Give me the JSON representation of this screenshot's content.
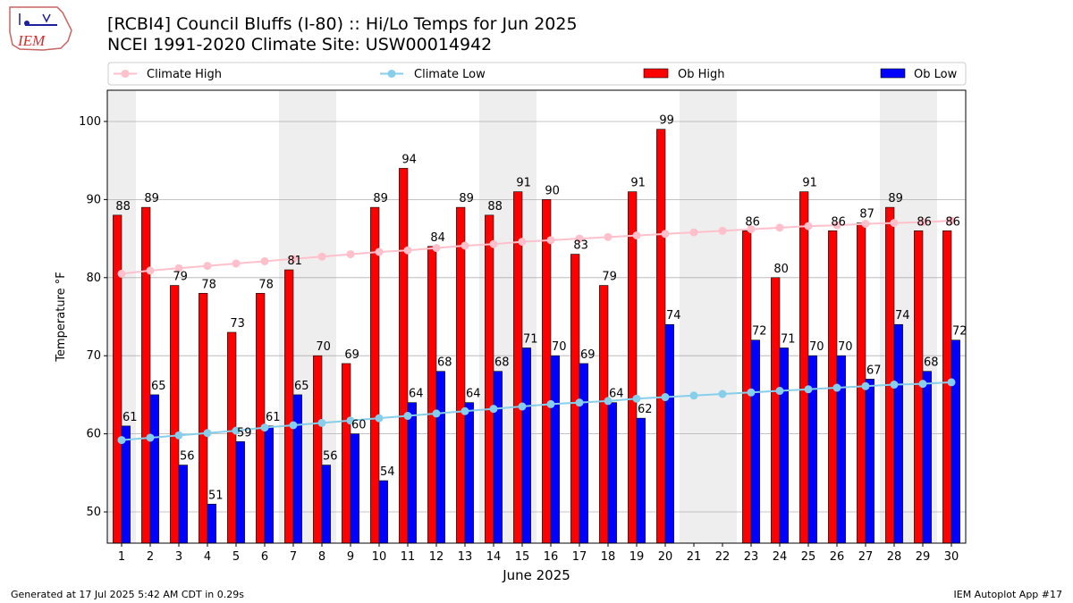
{
  "header": {
    "title_line1": "[RCBI4] Council Bluffs (I-80) :: Hi/Lo Temps for Jun 2025",
    "title_line2": "NCEI 1991-2020 Climate Site: USW00014942",
    "logo_text": "IEM"
  },
  "footer": {
    "left": "Generated at 17 Jul 2025 5:42 AM CDT in 0.29s",
    "right": "IEM Autoplot App #17"
  },
  "colors": {
    "ob_high": "#ff0000",
    "ob_low": "#0000ff",
    "climate_high": "#ffc0cb",
    "climate_low": "#87ceeb",
    "weekend_band": "#eeeeee",
    "grid": "#b0b0b0"
  },
  "chart_data": {
    "type": "bar",
    "xlabel": "June 2025",
    "ylabel": "Temperature °F",
    "ylim": [
      46,
      104
    ],
    "yticks": [
      50,
      60,
      70,
      80,
      90,
      100
    ],
    "grid": true,
    "legend": "top",
    "categories": [
      "1",
      "2",
      "3",
      "4",
      "5",
      "6",
      "7",
      "8",
      "9",
      "10",
      "11",
      "12",
      "13",
      "14",
      "15",
      "16",
      "17",
      "18",
      "19",
      "20",
      "21",
      "22",
      "23",
      "24",
      "25",
      "26",
      "27",
      "28",
      "29",
      "30"
    ],
    "weekend_days": [
      1,
      7,
      8,
      14,
      15,
      21,
      22,
      28,
      29
    ],
    "legend_entries": [
      "Climate High",
      "Climate Low",
      "Ob High",
      "Ob Low"
    ],
    "series": [
      {
        "name": "Ob High",
        "kind": "bar",
        "values": [
          88,
          89,
          79,
          78,
          73,
          78,
          81,
          70,
          69,
          89,
          94,
          84,
          89,
          88,
          91,
          90,
          83,
          79,
          91,
          99,
          null,
          null,
          86,
          80,
          91,
          86,
          87,
          89,
          86,
          86
        ],
        "labels": [
          "88",
          "89",
          "79",
          "78",
          "73",
          "78",
          "81",
          "70",
          "69",
          "89",
          "94",
          "84",
          "89",
          "88",
          "91",
          "90",
          "83",
          "79",
          "91",
          "99",
          null,
          null,
          "86",
          "80",
          "91",
          "86",
          "87",
          "89",
          "86",
          "86"
        ]
      },
      {
        "name": "Ob Low",
        "kind": "bar",
        "values": [
          61,
          65,
          56,
          51,
          59,
          61,
          65,
          56,
          60,
          54,
          64,
          68,
          64,
          68,
          71,
          70,
          69,
          64,
          62,
          74,
          null,
          null,
          72,
          71,
          70,
          70,
          67,
          74,
          68,
          72
        ],
        "labels": [
          "61",
          "65",
          "56",
          "51",
          "59",
          "61",
          "65",
          "56",
          "60",
          "54",
          "64",
          "68",
          "64",
          "68",
          "71",
          "70",
          "69",
          "64",
          "62",
          "74",
          null,
          null,
          "72",
          "71",
          "70",
          "70",
          "67",
          "74",
          "68",
          "72"
        ]
      },
      {
        "name": "Climate High",
        "kind": "line",
        "values": [
          80.5,
          80.9,
          81.2,
          81.5,
          81.8,
          82.1,
          82.4,
          82.7,
          83.0,
          83.3,
          83.5,
          83.8,
          84.1,
          84.3,
          84.6,
          84.8,
          85.0,
          85.2,
          85.4,
          85.6,
          85.8,
          86.0,
          86.2,
          86.4,
          86.6,
          86.7,
          86.9,
          87.0,
          87.1,
          87.3
        ]
      },
      {
        "name": "Climate Low",
        "kind": "line",
        "values": [
          59.2,
          59.5,
          59.8,
          60.1,
          60.4,
          60.8,
          61.1,
          61.4,
          61.7,
          62.0,
          62.3,
          62.6,
          62.9,
          63.2,
          63.5,
          63.8,
          64.0,
          64.2,
          64.5,
          64.7,
          64.9,
          65.1,
          65.3,
          65.5,
          65.7,
          65.9,
          66.1,
          66.3,
          66.4,
          66.6
        ]
      }
    ]
  }
}
